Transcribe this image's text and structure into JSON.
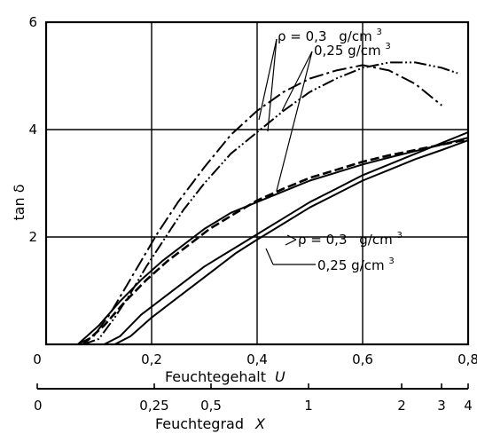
{
  "chart_data": {
    "type": "line",
    "ylabel": "tan δ",
    "xlabel_main": "Feuchtegehalt",
    "xlabel_main_var": "U",
    "xlabel_secondary": "Feuchtegrad",
    "xlabel_secondary_var": "X",
    "xlim": [
      0,
      0.8
    ],
    "ylim": [
      0,
      6
    ],
    "x_ticks": [
      "0",
      "0,2",
      "0,4",
      "0,6",
      "0,8"
    ],
    "x_tick_values": [
      0,
      0.2,
      0.4,
      0.6,
      0.8
    ],
    "y_ticks": [
      "2",
      "4",
      "6"
    ],
    "y_tick_values": [
      2,
      4,
      6
    ],
    "secondary_axis": {
      "scale": "log",
      "ticks": [
        "0",
        "0,25",
        "0,5",
        "1",
        "2",
        "3",
        "4"
      ],
      "tick_values": [
        0,
        0.25,
        0.5,
        1,
        2,
        3,
        4
      ]
    },
    "grid": true,
    "annotations": {
      "upper_rho_03": {
        "prefix": "ρ = 0,3",
        "unit": "g/cm",
        "exp": "3"
      },
      "upper_rho_025": {
        "prefix": "0,25 g/cm",
        "exp": "3"
      },
      "lower_rho_03": {
        "prefix": "ρ = 0,3",
        "unit": "g/cm",
        "exp": "3"
      },
      "lower_rho_025": {
        "prefix": "0,25 g/cm",
        "exp": "3"
      }
    },
    "series": [
      {
        "group": "upper",
        "style": "dash-dot",
        "x": [
          0.06,
          0.09,
          0.12,
          0.15,
          0.18,
          0.21,
          0.25,
          0.3,
          0.35,
          0.4,
          0.45,
          0.5,
          0.55,
          0.6,
          0.65,
          0.7,
          0.75
        ],
        "y": [
          0,
          0.15,
          0.55,
          1.05,
          1.55,
          2.05,
          2.65,
          3.3,
          3.9,
          4.35,
          4.7,
          4.95,
          5.1,
          5.2,
          5.1,
          4.85,
          4.45
        ]
      },
      {
        "group": "upper",
        "style": "dash-dot-dot",
        "x": [
          0.07,
          0.1,
          0.13,
          0.16,
          0.19,
          0.22,
          0.26,
          0.3,
          0.35,
          0.4,
          0.45,
          0.5,
          0.55,
          0.6,
          0.65,
          0.7,
          0.75,
          0.78
        ],
        "y": [
          0,
          0.1,
          0.5,
          0.95,
          1.45,
          1.9,
          2.5,
          3.0,
          3.55,
          3.95,
          4.35,
          4.7,
          4.95,
          5.15,
          5.25,
          5.25,
          5.15,
          5.05
        ]
      },
      {
        "group": "middle",
        "style": "solid",
        "x": [
          0.06,
          0.1,
          0.14,
          0.18,
          0.22,
          0.26,
          0.3,
          0.35,
          0.4,
          0.45,
          0.5,
          0.55,
          0.6,
          0.65,
          0.7,
          0.75,
          0.8
        ],
        "y": [
          0,
          0.35,
          0.8,
          1.2,
          1.55,
          1.85,
          2.15,
          2.45,
          2.65,
          2.85,
          3.05,
          3.2,
          3.35,
          3.48,
          3.6,
          3.72,
          3.85
        ]
      },
      {
        "group": "middle",
        "style": "dashed",
        "x": [
          0.07,
          0.11,
          0.15,
          0.19,
          0.23,
          0.27,
          0.31,
          0.36,
          0.4,
          0.45,
          0.5,
          0.55,
          0.6,
          0.65,
          0.7,
          0.75,
          0.8
        ],
        "y": [
          0,
          0.35,
          0.8,
          1.2,
          1.55,
          1.85,
          2.15,
          2.45,
          2.68,
          2.9,
          3.1,
          3.25,
          3.4,
          3.52,
          3.62,
          3.72,
          3.82
        ]
      },
      {
        "group": "lower",
        "style": "solid",
        "x": [
          0.11,
          0.14,
          0.18,
          0.22,
          0.26,
          0.3,
          0.35,
          0.4,
          0.45,
          0.5,
          0.55,
          0.6,
          0.65,
          0.7,
          0.75,
          0.8
        ],
        "y": [
          0,
          0.15,
          0.55,
          0.85,
          1.15,
          1.45,
          1.75,
          2.05,
          2.35,
          2.65,
          2.9,
          3.15,
          3.35,
          3.55,
          3.75,
          3.95
        ]
      },
      {
        "group": "lower",
        "style": "solid",
        "x": [
          0.13,
          0.16,
          0.2,
          0.24,
          0.28,
          0.32,
          0.36,
          0.4,
          0.45,
          0.5,
          0.55,
          0.6,
          0.65,
          0.7,
          0.75,
          0.8
        ],
        "y": [
          0,
          0.15,
          0.5,
          0.8,
          1.1,
          1.4,
          1.7,
          1.95,
          2.25,
          2.55,
          2.8,
          3.05,
          3.25,
          3.45,
          3.62,
          3.8
        ]
      }
    ]
  }
}
